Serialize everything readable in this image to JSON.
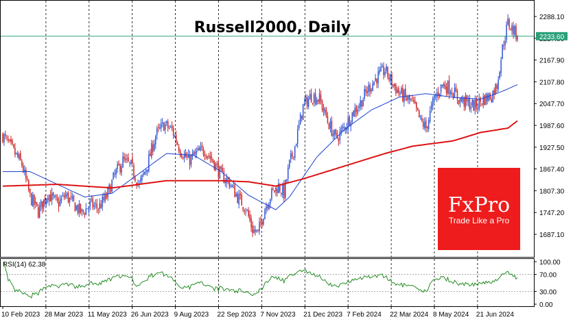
{
  "chart_data": {
    "type": "candlestick",
    "title": "Russell2000, Daily",
    "current_price": "2233.60",
    "y_ticks": [
      "2288.10",
      "2227.80",
      "2167.90",
      "2107.80",
      "2047.70",
      "1987.60",
      "1927.50",
      "1867.40",
      "1807.30",
      "1747.20",
      "1687.10"
    ],
    "ylim": [
      1660,
      2310
    ],
    "x_ticks": [
      "10 Feb 2023",
      "28 Mar 2023",
      "11 May 2023",
      "26 Jun 2023",
      "9 Aug 2023",
      "22 Sep 2023",
      "7 Nov 2023",
      "21 Dec 2023",
      "7 Feb 2024",
      "22 Mar 2024",
      "8 May 2024",
      "21 Jun 2024"
    ],
    "close_path": [
      [
        0,
        1960
      ],
      [
        8,
        1915
      ],
      [
        14,
        1880
      ],
      [
        20,
        1790
      ],
      [
        26,
        1750
      ],
      [
        33,
        1800
      ],
      [
        40,
        1770
      ],
      [
        46,
        1795
      ],
      [
        52,
        1770
      ],
      [
        58,
        1745
      ],
      [
        64,
        1770
      ],
      [
        70,
        1760
      ],
      [
        76,
        1790
      ],
      [
        82,
        1850
      ],
      [
        88,
        1890
      ],
      [
        94,
        1875
      ],
      [
        100,
        1820
      ],
      [
        106,
        1880
      ],
      [
        112,
        1960
      ],
      [
        118,
        1990
      ],
      [
        124,
        1975
      ],
      [
        130,
        1920
      ],
      [
        136,
        1890
      ],
      [
        142,
        1910
      ],
      [
        148,
        1920
      ],
      [
        154,
        1890
      ],
      [
        160,
        1850
      ],
      [
        166,
        1830
      ],
      [
        172,
        1790
      ],
      [
        178,
        1760
      ],
      [
        183,
        1700
      ],
      [
        187,
        1690
      ],
      [
        192,
        1760
      ],
      [
        197,
        1800
      ],
      [
        202,
        1820
      ],
      [
        206,
        1800
      ],
      [
        210,
        1880
      ],
      [
        214,
        1930
      ],
      [
        220,
        2040
      ],
      [
        226,
        2070
      ],
      [
        232,
        2060
      ],
      [
        238,
        2000
      ],
      [
        244,
        1950
      ],
      [
        250,
        1980
      ],
      [
        256,
        2020
      ],
      [
        262,
        2050
      ],
      [
        268,
        2090
      ],
      [
        274,
        2120
      ],
      [
        280,
        2140
      ],
      [
        286,
        2100
      ],
      [
        290,
        2080
      ],
      [
        296,
        2060
      ],
      [
        300,
        2050
      ],
      [
        306,
        2000
      ],
      [
        310,
        1980
      ],
      [
        316,
        2060
      ],
      [
        322,
        2100
      ],
      [
        328,
        2090
      ],
      [
        334,
        2060
      ],
      [
        340,
        2050
      ],
      [
        346,
        2040
      ],
      [
        352,
        2060
      ],
      [
        358,
        2070
      ],
      [
        362,
        2100
      ],
      [
        366,
        2200
      ],
      [
        370,
        2270
      ],
      [
        374,
        2250
      ],
      [
        377,
        2233.6
      ]
    ],
    "sma_fast": [
      [
        0,
        1860
      ],
      [
        20,
        1860
      ],
      [
        40,
        1825
      ],
      [
        60,
        1790
      ],
      [
        80,
        1800
      ],
      [
        100,
        1855
      ],
      [
        120,
        1910
      ],
      [
        140,
        1905
      ],
      [
        160,
        1860
      ],
      [
        180,
        1795
      ],
      [
        200,
        1755
      ],
      [
        210,
        1790
      ],
      [
        230,
        1900
      ],
      [
        250,
        1975
      ],
      [
        270,
        2030
      ],
      [
        290,
        2065
      ],
      [
        310,
        2075
      ],
      [
        330,
        2065
      ],
      [
        350,
        2060
      ],
      [
        365,
        2080
      ],
      [
        377,
        2100
      ]
    ],
    "sma_slow": [
      [
        0,
        1820
      ],
      [
        40,
        1825
      ],
      [
        80,
        1815
      ],
      [
        120,
        1835
      ],
      [
        160,
        1835
      ],
      [
        180,
        1832
      ],
      [
        200,
        1820
      ],
      [
        220,
        1840
      ],
      [
        250,
        1875
      ],
      [
        280,
        1910
      ],
      [
        300,
        1930
      ],
      [
        330,
        1945
      ],
      [
        350,
        1968
      ],
      [
        370,
        1980
      ],
      [
        377,
        2000
      ]
    ],
    "rsi": {
      "label": "RSI(14) 62.38",
      "value": 62.38,
      "levels": [
        "100.00",
        "70.00",
        "30.00",
        "0.00"
      ],
      "ylim": [
        0,
        100
      ]
    },
    "grid": "vertical dashed",
    "colors": {
      "bull": "#2f55d4",
      "bear": "#cc2222",
      "sma_fast": "#1a3fd0",
      "sma_slow": "#dd1111",
      "rsi": "#228b22",
      "price_line": "#2aa07a",
      "brand_bg": "#ee1c1c"
    }
  },
  "brand": {
    "name": "FxPro",
    "tagline": "Trade Like a Pro"
  }
}
